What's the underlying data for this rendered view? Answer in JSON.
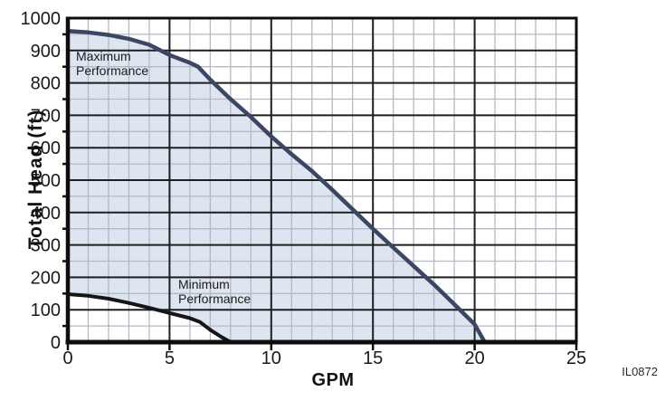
{
  "figure": {
    "watermark": "IL0872"
  },
  "chart_data": {
    "type": "area",
    "title": "",
    "xlabel": "GPM",
    "ylabel": "Total Head (ft)",
    "xlim": [
      0,
      25
    ],
    "ylim": [
      0,
      1000
    ],
    "x_ticks": [
      0,
      5,
      10,
      15,
      20,
      25
    ],
    "y_ticks": [
      0,
      100,
      200,
      300,
      400,
      500,
      600,
      700,
      800,
      900,
      1000
    ],
    "x_minor_step": 1,
    "y_minor_step": 50,
    "grid": "major-and-minor",
    "legend_position": "none",
    "series": [
      {
        "name": "Maximum Performance",
        "points": [
          [
            0,
            960
          ],
          [
            1,
            956
          ],
          [
            2,
            948
          ],
          [
            3,
            936
          ],
          [
            4,
            918
          ],
          [
            5,
            886
          ],
          [
            6,
            862
          ],
          [
            6.4,
            850
          ],
          [
            7,
            810
          ],
          [
            8,
            750
          ],
          [
            9,
            695
          ],
          [
            10,
            635
          ],
          [
            11,
            580
          ],
          [
            12,
            528
          ],
          [
            13,
            470
          ],
          [
            14,
            410
          ],
          [
            15,
            350
          ],
          [
            16,
            292
          ],
          [
            17,
            235
          ],
          [
            18,
            178
          ],
          [
            19,
            117
          ],
          [
            20,
            55
          ],
          [
            20.5,
            0
          ]
        ]
      },
      {
        "name": "Minimum Performance",
        "points": [
          [
            0,
            148
          ],
          [
            1,
            143
          ],
          [
            2,
            134
          ],
          [
            3,
            121
          ],
          [
            4,
            106
          ],
          [
            5,
            90
          ],
          [
            6,
            74
          ],
          [
            6.5,
            62
          ],
          [
            7,
            38
          ],
          [
            7.5,
            18
          ],
          [
            8,
            0
          ]
        ]
      }
    ],
    "fill_between": {
      "upper": "Maximum Performance",
      "lower": "Minimum Performance",
      "description": "operating envelope shaded light blue, bounded below by x-axis between 8 and 20.5 GPM"
    },
    "annotations": {
      "maximum": {
        "line1": "Maximum",
        "line2": "Performance"
      },
      "minimum": {
        "line1": "Minimum",
        "line2": "Performance"
      }
    },
    "colors": {
      "fill": "#dde5f0",
      "max_curve": "#3a4663",
      "min_curve": "#161616",
      "grid_minor": "#b4bac3",
      "grid_major": "#1f1f1f",
      "axis": "#0d0d0d",
      "text": "#1a1a1a"
    }
  }
}
